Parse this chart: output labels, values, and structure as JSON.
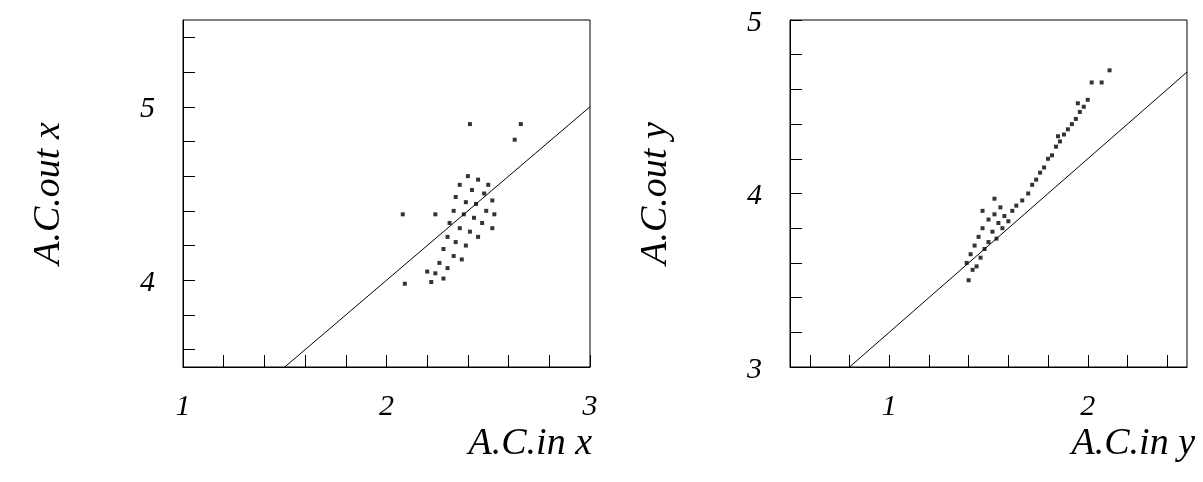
{
  "chart_data": [
    {
      "type": "scatter",
      "xlabel": "A.C.in x",
      "ylabel": "A.C.out x",
      "xlim": [
        1,
        3
      ],
      "ylim": [
        3.5,
        5.5
      ],
      "grid": false,
      "xticks": [
        1,
        {
          "value": 1.2,
          "label": null
        },
        {
          "value": 1.4,
          "label": null
        },
        {
          "value": 1.6,
          "label": null
        },
        {
          "value": 1.8,
          "label": null
        },
        2,
        {
          "value": 2.2,
          "label": null
        },
        {
          "value": 2.4,
          "label": null
        },
        {
          "value": 2.6,
          "label": null
        },
        {
          "value": 2.8,
          "label": null
        },
        3
      ],
      "yticks": [
        {
          "value": 3.6,
          "label": null
        },
        {
          "value": 3.8,
          "label": null
        },
        4,
        {
          "value": 4.2,
          "label": null
        },
        {
          "value": 4.4,
          "label": null
        },
        {
          "value": 4.6,
          "label": null
        },
        {
          "value": 4.8,
          "label": null
        },
        5,
        {
          "value": 5.2,
          "label": null
        },
        {
          "value": 5.4,
          "label": null
        }
      ],
      "series": [
        {
          "marker": "square",
          "color": "#000000",
          "x": [
            2.4,
            2.45,
            2.5,
            2.36,
            2.42,
            2.48,
            2.52,
            2.34,
            2.39,
            2.44,
            2.49,
            2.33,
            2.38,
            2.43,
            2.47,
            2.31,
            2.36,
            2.41,
            2.45,
            2.3,
            2.34,
            2.39,
            2.28,
            2.33,
            2.37,
            2.26,
            2.3,
            2.24,
            2.28,
            2.22,
            2.2,
            2.53,
            2.52,
            2.41,
            2.66,
            2.63,
            2.08,
            2.24,
            2.09
          ],
          "values": [
            4.6,
            4.58,
            4.55,
            4.55,
            4.52,
            4.5,
            4.46,
            4.48,
            4.45,
            4.44,
            4.4,
            4.4,
            4.38,
            4.36,
            4.33,
            4.33,
            4.3,
            4.28,
            4.25,
            4.25,
            4.22,
            4.2,
            4.18,
            4.14,
            4.12,
            4.1,
            4.07,
            4.04,
            4.01,
            3.99,
            4.05,
            4.38,
            4.3,
            4.9,
            4.9,
            4.81,
            4.38,
            4.38,
            3.98
          ]
        },
        {
          "type": "line",
          "marker": "none",
          "color": "#000000",
          "x": [
            1.5,
            3
          ],
          "values": [
            3.5,
            5
          ]
        }
      ]
    },
    {
      "type": "scatter",
      "xlabel": "A.C.in y",
      "ylabel": "A.C.out y",
      "xlim": [
        0.5,
        2.5
      ],
      "ylim": [
        3,
        5
      ],
      "grid": false,
      "xticks": [
        {
          "value": 0.6,
          "label": null
        },
        {
          "value": 0.8,
          "label": null
        },
        1,
        {
          "value": 1.2,
          "label": null
        },
        {
          "value": 1.4,
          "label": null
        },
        {
          "value": 1.6,
          "label": null
        },
        {
          "value": 1.8,
          "label": null
        },
        2,
        {
          "value": 2.2,
          "label": null
        },
        {
          "value": 2.4,
          "label": null
        }
      ],
      "yticks": [
        3,
        {
          "value": 3.2,
          "label": null
        },
        {
          "value": 3.4,
          "label": null
        },
        {
          "value": 3.6,
          "label": null
        },
        {
          "value": 3.8,
          "label": null
        },
        4,
        {
          "value": 4.2,
          "label": null
        },
        {
          "value": 4.4,
          "label": null
        },
        {
          "value": 4.6,
          "label": null
        },
        {
          "value": 4.8,
          "label": null
        },
        5
      ],
      "series": [
        {
          "marker": "square",
          "color": "#000000",
          "x": [
            1.4,
            1.42,
            1.39,
            1.44,
            1.41,
            1.46,
            1.43,
            1.48,
            1.45,
            1.5,
            1.47,
            1.52,
            1.54,
            1.5,
            1.55,
            1.57,
            1.53,
            1.58,
            1.6,
            1.62,
            1.56,
            1.64,
            1.67,
            1.7,
            1.72,
            1.74,
            1.76,
            1.78,
            1.8,
            1.82,
            1.84,
            1.86,
            1.88,
            1.9,
            1.92,
            1.94,
            1.96,
            1.98,
            2.0,
            1.95,
            1.85,
            2.02,
            2.07,
            2.11,
            1.47,
            1.53
          ],
          "values": [
            3.5,
            3.56,
            3.6,
            3.58,
            3.65,
            3.63,
            3.7,
            3.68,
            3.75,
            3.72,
            3.8,
            3.78,
            3.74,
            3.85,
            3.83,
            3.8,
            3.88,
            3.87,
            3.84,
            3.9,
            3.92,
            3.93,
            3.96,
            4.0,
            4.05,
            4.08,
            4.12,
            4.15,
            4.2,
            4.22,
            4.27,
            4.3,
            4.34,
            4.37,
            4.4,
            4.43,
            4.47,
            4.5,
            4.54,
            4.52,
            4.33,
            4.64,
            4.64,
            4.71,
            3.9,
            3.97
          ]
        },
        {
          "type": "line",
          "marker": "none",
          "color": "#000000",
          "x": [
            0.8,
            2.5
          ],
          "values": [
            3,
            4.7
          ]
        }
      ]
    }
  ]
}
